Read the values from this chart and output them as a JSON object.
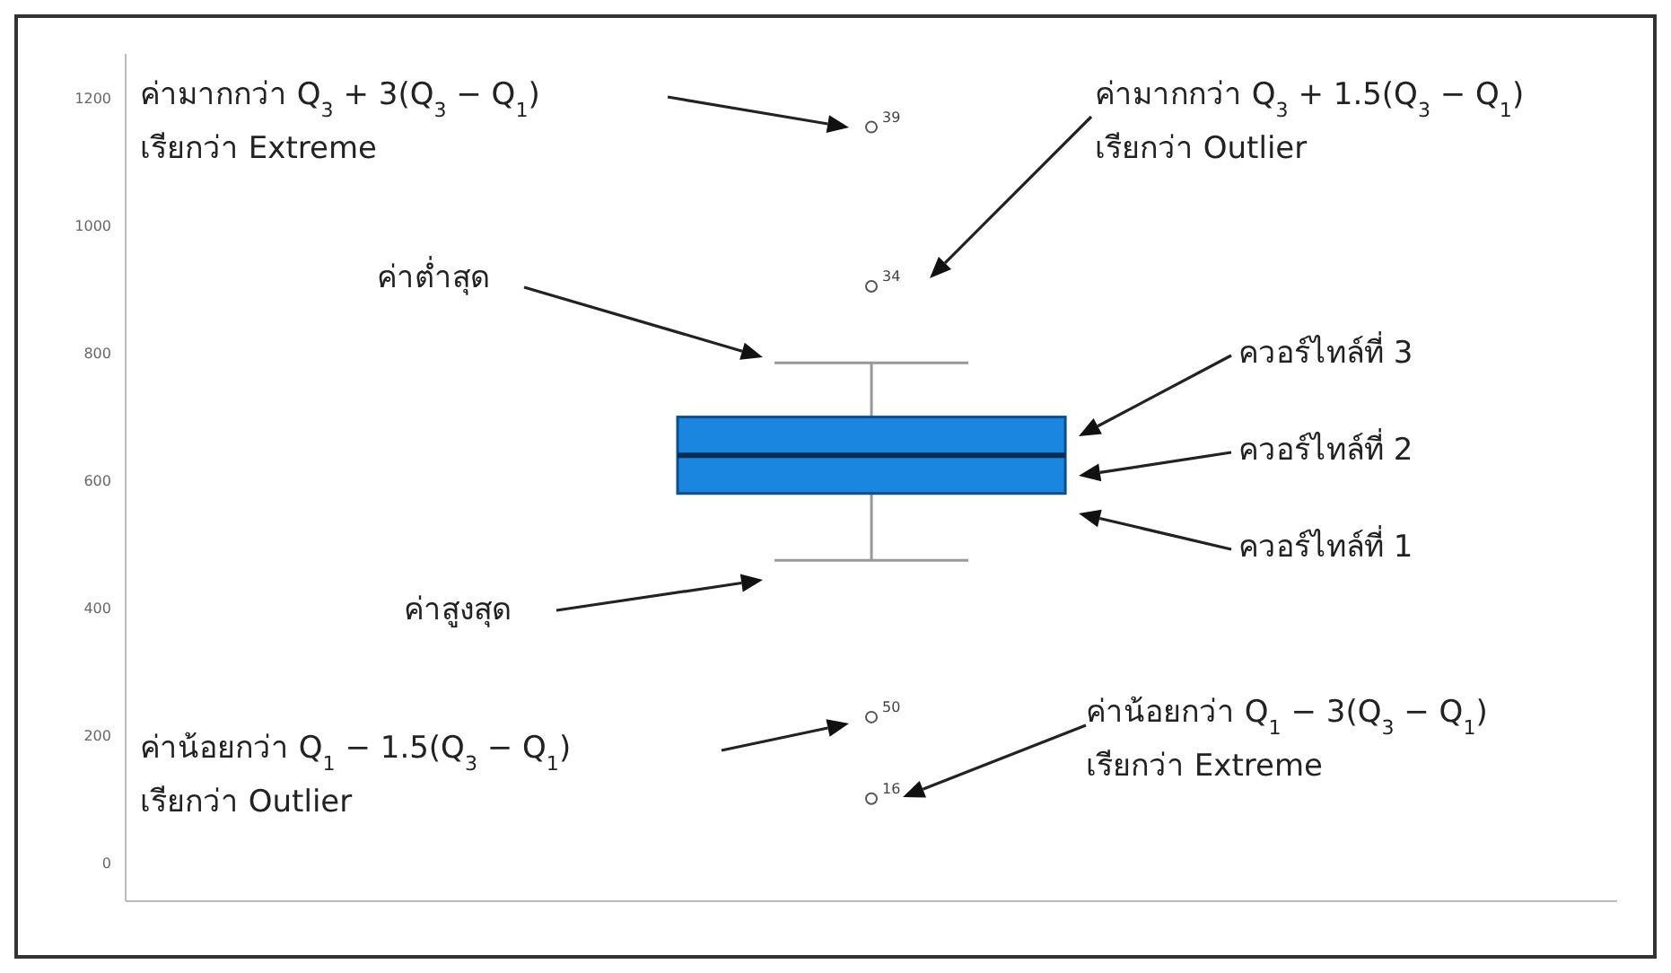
{
  "chart_data": {
    "type": "box",
    "categories": [
      null
    ],
    "boxes": [
      {
        "low": 475,
        "q1": 580,
        "median": 640,
        "q3": 700,
        "high": 785,
        "outliers": [
          1155,
          905,
          229,
          101
        ]
      }
    ],
    "color": "#1a86e0",
    "ylim": [
      -60,
      1270
    ],
    "yticks": [
      0,
      200,
      400,
      600,
      800,
      1000,
      1200
    ],
    "annotations": [
      "ค่ามากกว่า Q$_{3}$ + 3(Q$_{3}$ − Q$_{1}$)",
      "เรียกว่า Extreme",
      "ค่ามากกว่า Q$_{3}$ + 1.5(Q$_{3}$ − Q$_{1}$)",
      "เรียกว่า Outlier",
      "ค่าต่ำสุด",
      "ควอร์ไทล์ที่ 3",
      "ควอร์ไทล์ที่ 2",
      "ควอร์ไทล์ที่ 1",
      "ค่าสูงสุด",
      "ค่าน้อยกว่า Q$_{1}$ − 1.5(Q$_{3}$ − Q$_{1}$)",
      "เรียกว่า Outlier",
      "ค่าน้อยกว่า Q$_{1}$ − 3(Q$_{3}$ − Q$_{1}$)",
      "เรียกว่า Extreme",
      "39",
      "34",
      "50",
      "16"
    ]
  }
}
